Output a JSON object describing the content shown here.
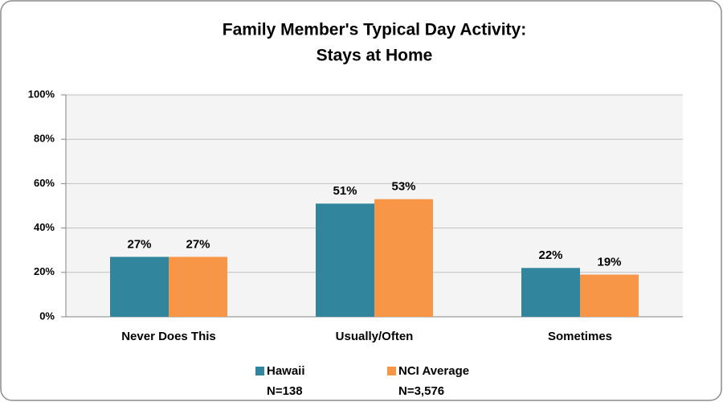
{
  "chart_data": {
    "type": "bar",
    "title": [
      "Family Member's Typical Day Activity:",
      "Stays at Home"
    ],
    "categories": [
      "Never Does This",
      "Usually/Often",
      "Sometimes"
    ],
    "series": [
      {
        "name": "Hawaii",
        "n_label": "N=138",
        "color": "#31859c",
        "values": [
          27,
          51,
          22
        ],
        "value_labels": [
          "27%",
          "51%",
          "22%"
        ]
      },
      {
        "name": "NCI Average",
        "n_label": "N=3,576",
        "color": "#f79646",
        "values": [
          27,
          53,
          19
        ],
        "value_labels": [
          "27%",
          "53%",
          "19%"
        ]
      }
    ],
    "ylim": [
      0,
      100
    ],
    "yticks": [
      {
        "value": 0,
        "label": "0%"
      },
      {
        "value": 20,
        "label": "20%"
      },
      {
        "value": 40,
        "label": "40%"
      },
      {
        "value": 60,
        "label": "60%"
      },
      {
        "value": 80,
        "label": "80%"
      },
      {
        "value": 100,
        "label": "100%"
      }
    ],
    "grid": true,
    "legend": "bottom"
  }
}
